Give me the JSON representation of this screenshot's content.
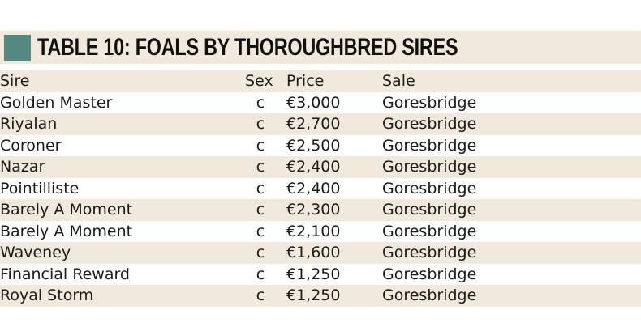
{
  "title": "TABLE 10: FOALS BY THOROUGHBRED SIRES",
  "colors": {
    "accent_square": "#538982",
    "band": "#f0e9dc"
  },
  "columns": [
    "Sire",
    "Sex",
    "Price",
    "Sale"
  ],
  "rows": [
    [
      "Golden Master",
      "c",
      "€3,000",
      "Goresbridge"
    ],
    [
      "Riyalan",
      "c",
      "€2,700",
      "Goresbridge"
    ],
    [
      "Coroner",
      "c",
      "€2,500",
      "Goresbridge"
    ],
    [
      "Nazar",
      "c",
      "€2,400",
      "Goresbridge"
    ],
    [
      "Pointilliste",
      "c",
      "€2,400",
      "Goresbridge"
    ],
    [
      "Barely A Moment",
      "c",
      "€2,300",
      "Goresbridge"
    ],
    [
      "Barely A Moment",
      "c",
      "€2,100",
      "Goresbridge"
    ],
    [
      "Waveney",
      "c",
      "€1,600",
      "Goresbridge"
    ],
    [
      "Financial Reward",
      "c",
      "€1,250",
      "Goresbridge"
    ],
    [
      "Royal Storm",
      "c",
      "€1,250",
      "Goresbridge"
    ]
  ]
}
